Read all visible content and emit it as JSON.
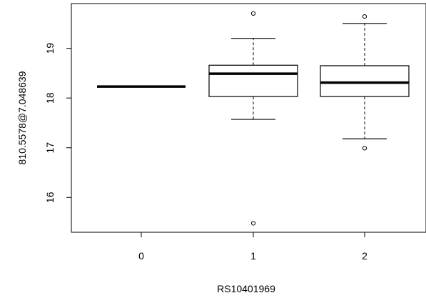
{
  "chart_data": {
    "type": "boxplot",
    "xlabel": "RS10401969",
    "ylabel": "810.5578@7.048639",
    "categories": [
      "0",
      "1",
      "2"
    ],
    "y_ticks": [
      "16",
      "17",
      "18",
      "19"
    ],
    "ylim": [
      15.3,
      19.9
    ],
    "grid": false,
    "boxes": [
      {
        "category": "0",
        "whisker_low": 18.23,
        "q1": 18.23,
        "median": 18.23,
        "q3": 18.23,
        "whisker_high": 18.23,
        "outliers": []
      },
      {
        "category": "1",
        "whisker_low": 17.57,
        "q1": 18.03,
        "median": 18.49,
        "q3": 18.66,
        "whisker_high": 19.2,
        "outliers": [
          19.7,
          15.48
        ]
      },
      {
        "category": "2",
        "whisker_low": 17.18,
        "q1": 18.03,
        "median": 18.31,
        "q3": 18.65,
        "whisker_high": 19.5,
        "outliers": [
          19.64,
          16.99
        ]
      }
    ]
  }
}
